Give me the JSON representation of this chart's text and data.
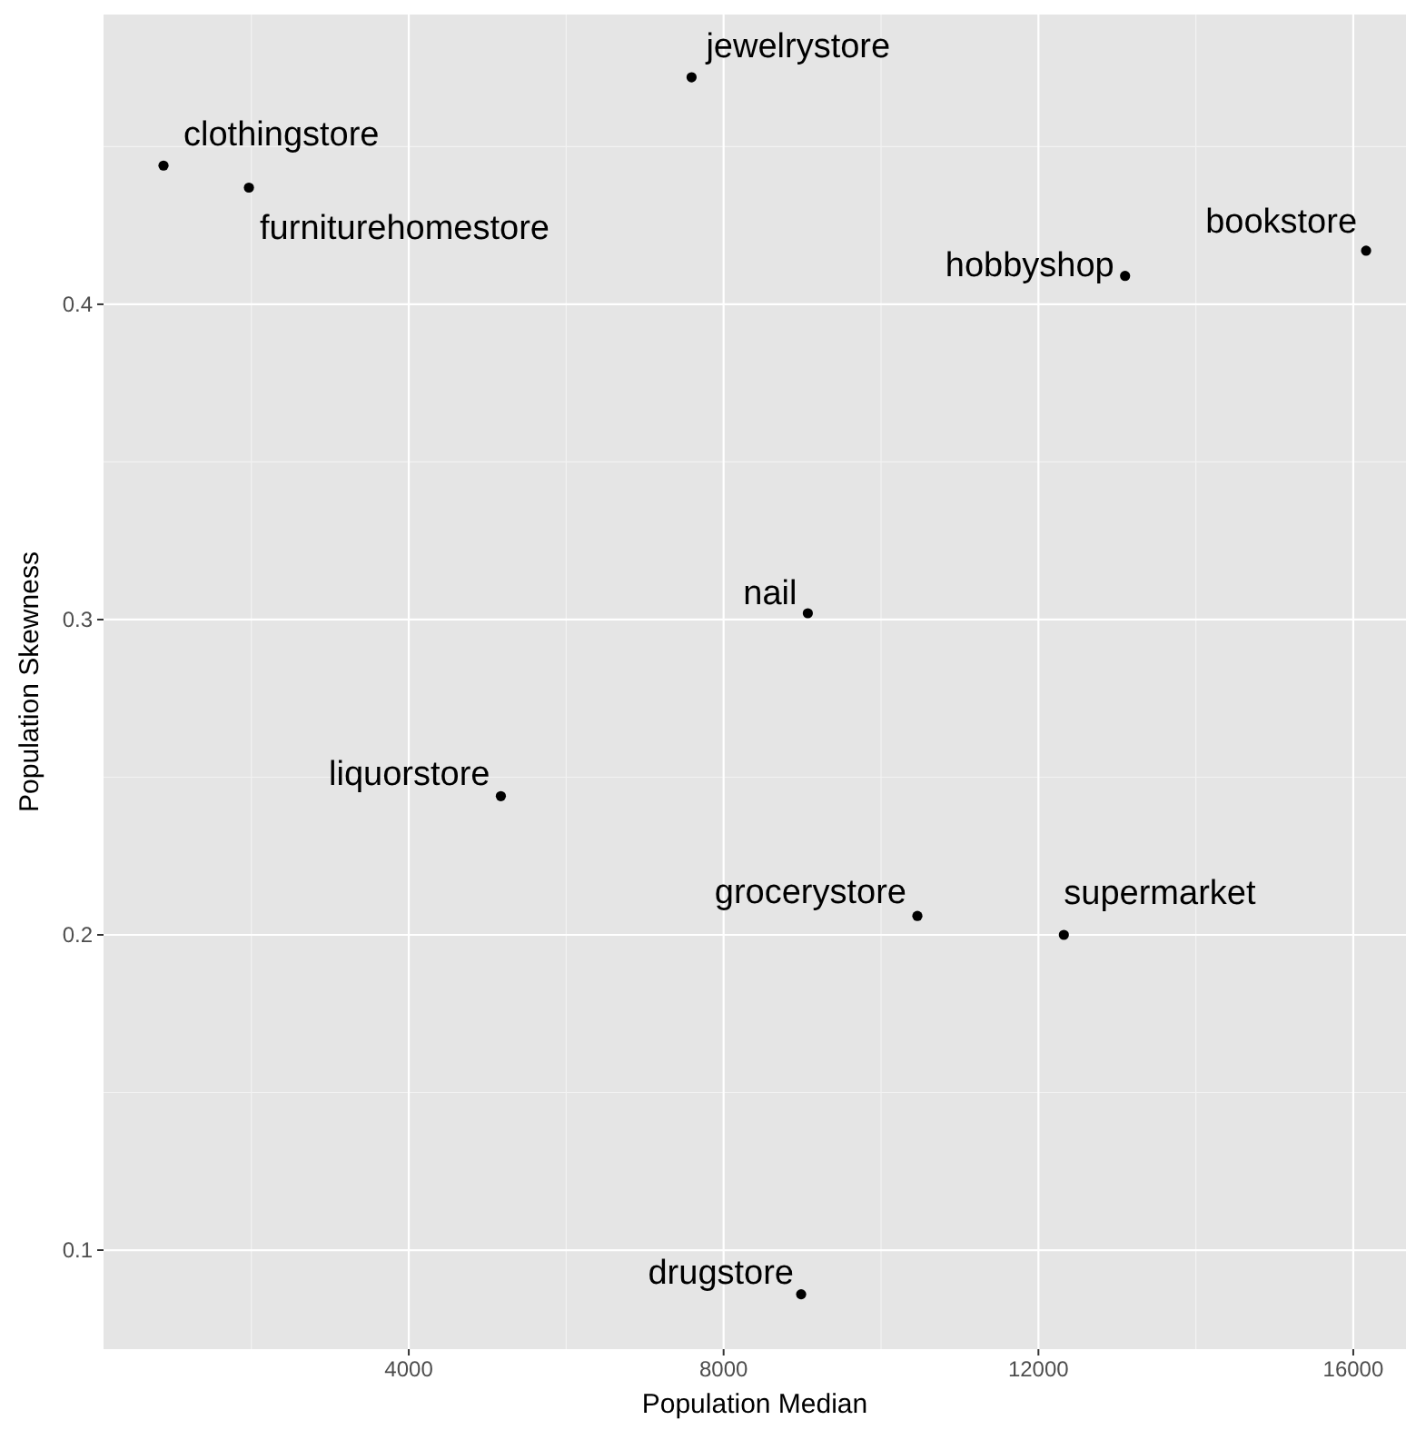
{
  "chart_data": {
    "type": "scatter",
    "xlabel": "Population Median",
    "ylabel": "Population Skewness",
    "x": [
      884,
      1969,
      7593,
      13101,
      16163,
      9070,
      5170,
      10462,
      12323,
      8985
    ],
    "series": [
      {
        "color": "#000000",
        "values": [
          0.444,
          0.437,
          0.472,
          0.409,
          0.417,
          0.302,
          0.244,
          0.206,
          0.2,
          0.086
        ]
      }
    ],
    "xlim": [
      122,
      16670
    ],
    "ylim": [
      0.0686,
      0.4919
    ],
    "xticks": [
      4000,
      8000,
      12000,
      16000
    ],
    "yticks": [
      0.1,
      0.2,
      0.3,
      0.4
    ],
    "grid": true,
    "marker": "circle",
    "annotations": [
      {
        "text": "clothingstore",
        "x": 884,
        "y": 0.444
      },
      {
        "text": "furniturehomestore",
        "x": 1969,
        "y": 0.437
      },
      {
        "text": "jewelrystore",
        "x": 7593,
        "y": 0.472
      },
      {
        "text": "hobbyshop",
        "x": 13101,
        "y": 0.409
      },
      {
        "text": "bookstore",
        "x": 16163,
        "y": 0.417
      },
      {
        "text": "nail",
        "x": 9070,
        "y": 0.302
      },
      {
        "text": "liquorstore",
        "x": 5170,
        "y": 0.244
      },
      {
        "text": "grocerystore",
        "x": 10462,
        "y": 0.206
      },
      {
        "text": "supermarket",
        "x": 12323,
        "y": 0.2
      },
      {
        "text": "drugstore",
        "x": 8985,
        "y": 0.086
      }
    ]
  }
}
